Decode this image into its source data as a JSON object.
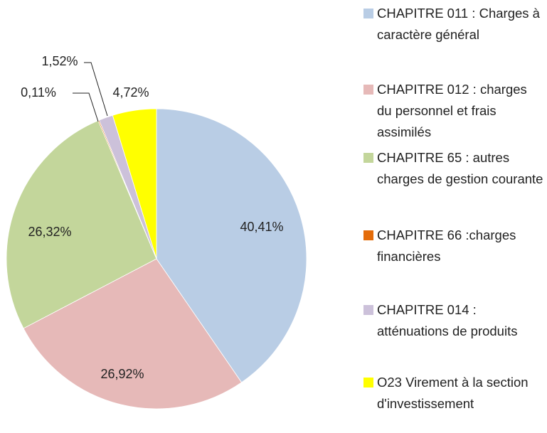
{
  "chart_data": {
    "type": "pie",
    "categories": [
      "CHAPITRE 011 : Charges à caractère général",
      "CHAPITRE 012  : charges du personnel et frais assimilés",
      "CHAPITRE 65 : autres charges de gestion courante",
      "CHAPITRE 66 :charges financières",
      "CHAPITRE 014 : atténuations de produits",
      "O23 Virement à la section d'investissement"
    ],
    "values": [
      40.41,
      26.92,
      26.32,
      0.11,
      1.52,
      4.72
    ],
    "value_labels": [
      "40,41%",
      "26,92%",
      "26,32%",
      "0,11%",
      "1,52%",
      "4,72%"
    ],
    "colors": [
      "#b9cde5",
      "#e6b9b8",
      "#c3d69b",
      "#e46c0a",
      "#ccc1da",
      "#ffff00"
    ],
    "legend": "right"
  }
}
